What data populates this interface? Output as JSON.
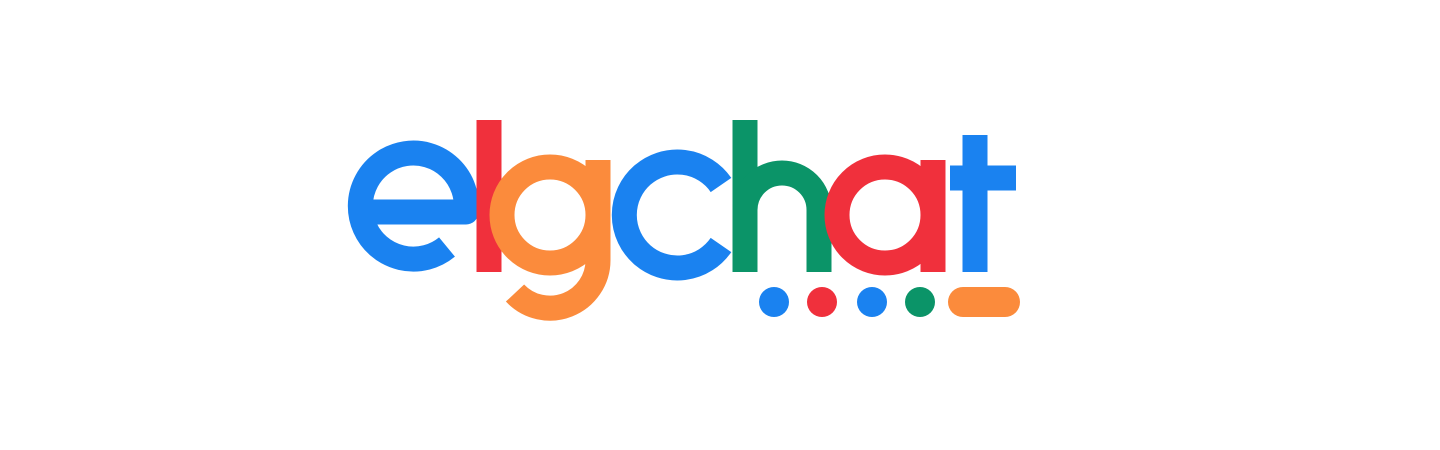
{
  "logo": {
    "text": "elgchat",
    "letters": [
      {
        "char": "e",
        "color": "#1a82f0"
      },
      {
        "char": "l",
        "color": "#f0303c"
      },
      {
        "char": "g",
        "color": "#fb8b3c"
      },
      {
        "char": "c",
        "color": "#1a82f0"
      },
      {
        "char": "h",
        "color": "#0b9468"
      },
      {
        "char": "a",
        "color": "#f0303c"
      },
      {
        "char": "t",
        "color": "#1a82f0"
      }
    ],
    "typing_indicator": {
      "dot_colors": [
        "#1a82f0",
        "#f0303c",
        "#1a82f0",
        "#0b9468"
      ],
      "cursor_color": "#fb8b3c"
    }
  },
  "colors": {
    "background": "#ffffff",
    "blue": "#1a82f0",
    "red": "#f0303c",
    "orange": "#fb8b3c",
    "green": "#0b9468"
  }
}
